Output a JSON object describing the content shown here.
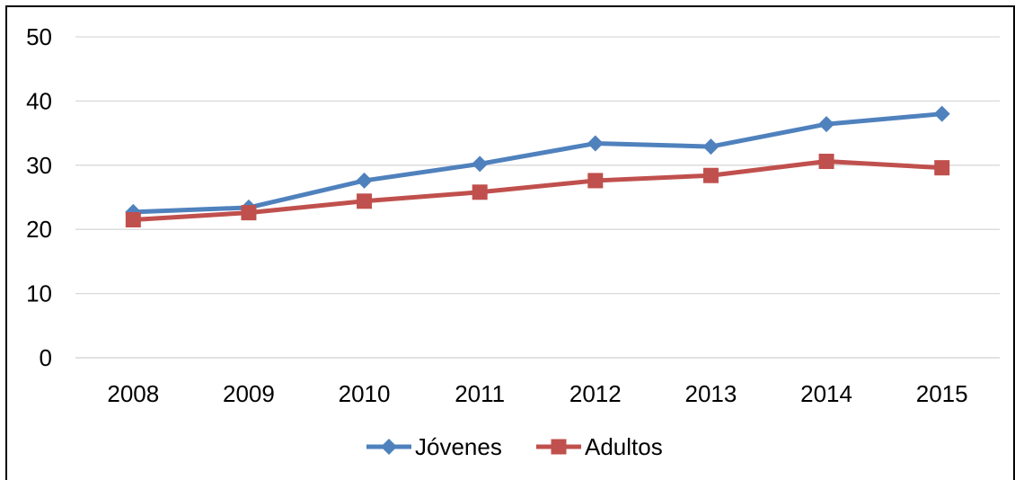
{
  "chart_data": {
    "type": "line",
    "categories": [
      "2008",
      "2009",
      "2010",
      "2011",
      "2012",
      "2013",
      "2014",
      "2015"
    ],
    "series": [
      {
        "name": "Jóvenes",
        "color": "#4F81BD",
        "marker": "diamond",
        "values": [
          22.7,
          23.4,
          27.6,
          30.2,
          33.4,
          32.9,
          36.4,
          38.0
        ]
      },
      {
        "name": "Adultos",
        "color": "#C0504D",
        "marker": "square",
        "values": [
          21.5,
          22.6,
          24.4,
          25.8,
          27.6,
          28.4,
          30.6,
          29.6
        ]
      }
    ],
    "ylim": [
      0,
      50
    ],
    "yticks": [
      "0",
      "10",
      "20",
      "30",
      "40",
      "50"
    ],
    "grid": true,
    "legend_position": "bottom"
  }
}
